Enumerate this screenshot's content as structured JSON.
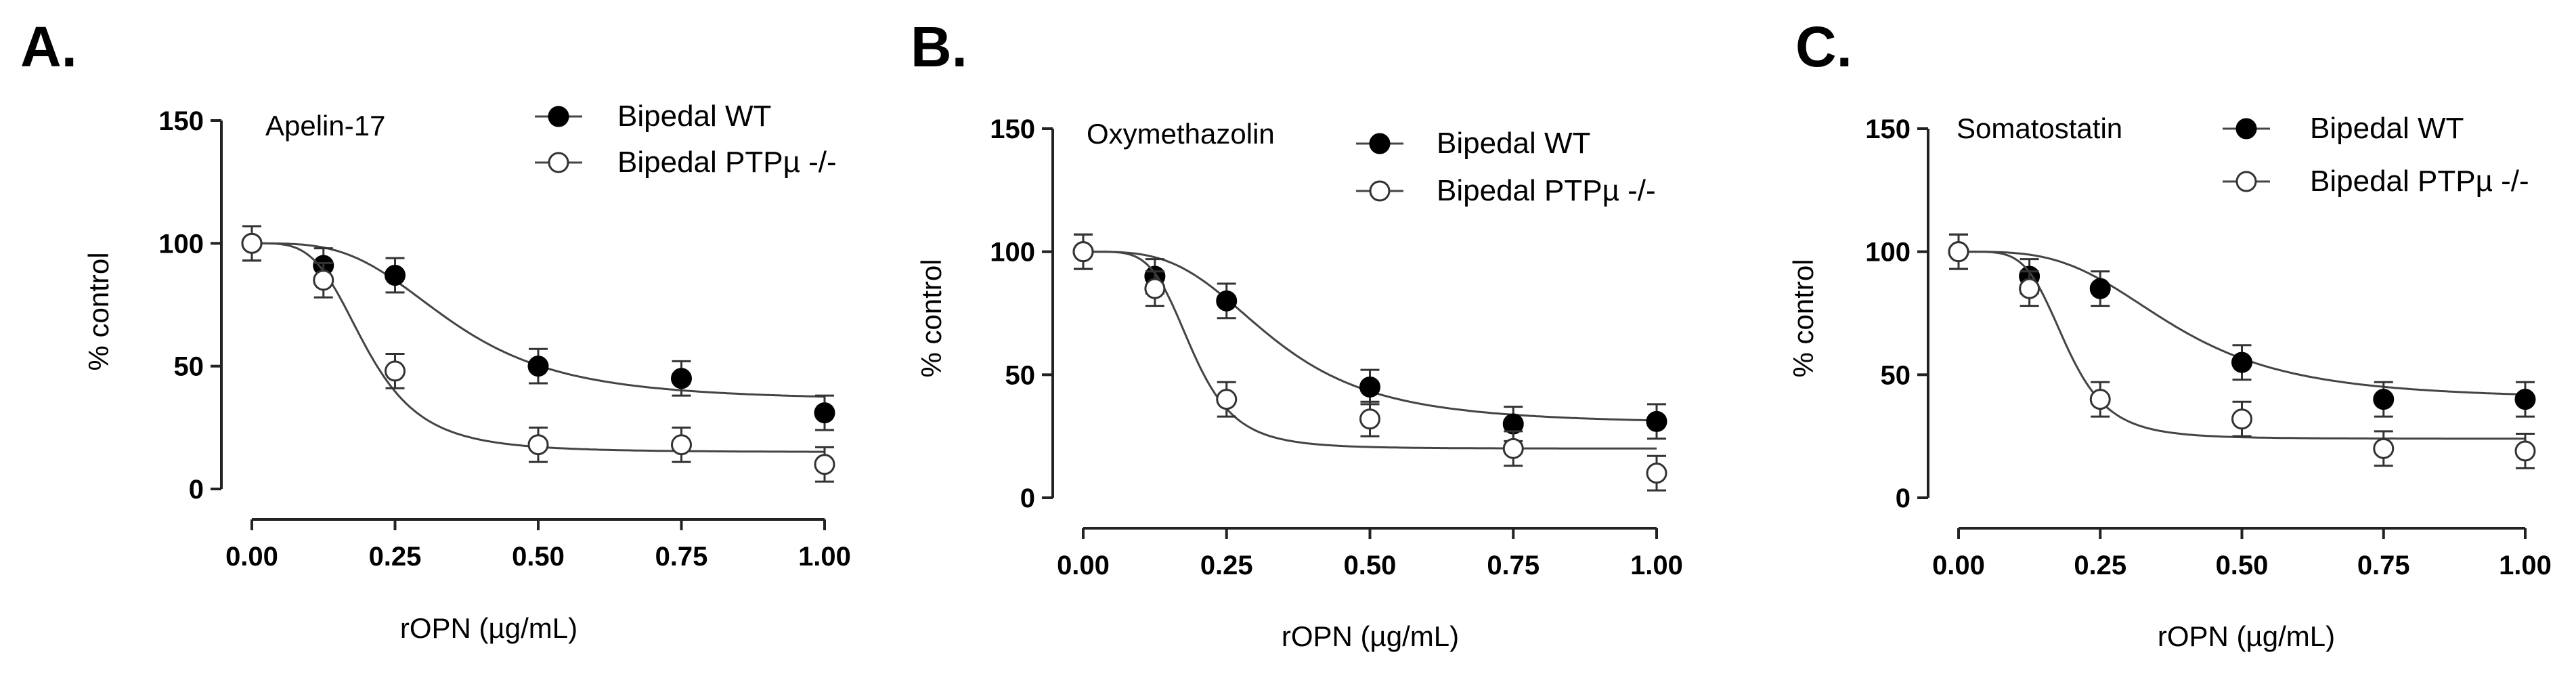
{
  "chart_data": [
    {
      "type": "scatter",
      "panel_letter": "A.",
      "compound": "Apelin-17",
      "xlabel": "rOPN (µg/mL)",
      "ylabel": "% control",
      "xlim": [
        0,
        1
      ],
      "ylim": [
        0,
        150
      ],
      "xticks": [
        "0.00",
        "0.25",
        "0.50",
        "0.75",
        "1.00"
      ],
      "yticks": [
        "0",
        "50",
        "100",
        "150"
      ],
      "legend_position": "top-right",
      "series": [
        {
          "name": "Bipedal WT",
          "marker": "filled-circle",
          "x": [
            0,
            0.125,
            0.25,
            0.5,
            0.75,
            1.0
          ],
          "y": [
            100,
            91,
            87,
            50,
            45,
            31
          ],
          "err": [
            7,
            7,
            7,
            7,
            7,
            7
          ],
          "fit": {
            "bottom": 36,
            "top": 100,
            "ec50": 0.35,
            "hill": 3.5
          }
        },
        {
          "name": "Bipedal PTPµ -/-",
          "marker": "open-circle",
          "x": [
            0,
            0.125,
            0.25,
            0.5,
            0.75,
            1.0
          ],
          "y": [
            100,
            85,
            48,
            18,
            18,
            10
          ],
          "err": [
            7,
            7,
            7,
            7,
            7,
            7
          ],
          "fit": {
            "bottom": 15,
            "top": 100,
            "ec50": 0.2,
            "hill": 4
          }
        }
      ]
    },
    {
      "type": "scatter",
      "panel_letter": "B.",
      "compound": "Oxymethazolin",
      "xlabel": "rOPN (µg/mL)",
      "ylabel": "% control",
      "xlim": [
        0,
        1
      ],
      "ylim": [
        0,
        150
      ],
      "xticks": [
        "0.00",
        "0.25",
        "0.50",
        "0.75",
        "1.00"
      ],
      "yticks": [
        "0",
        "50",
        "100",
        "150"
      ],
      "legend_position": "top-right",
      "series": [
        {
          "name": "Bipedal WT",
          "marker": "filled-circle",
          "x": [
            0,
            0.125,
            0.25,
            0.5,
            0.75,
            1.0
          ],
          "y": [
            100,
            90,
            80,
            45,
            30,
            31
          ],
          "err": [
            7,
            7,
            7,
            7,
            7,
            7
          ],
          "fit": {
            "bottom": 30,
            "top": 100,
            "ec50": 0.33,
            "hill": 3.5
          }
        },
        {
          "name": "Bipedal PTPµ -/-",
          "marker": "open-circle",
          "x": [
            0,
            0.125,
            0.25,
            0.5,
            0.75,
            1.0
          ],
          "y": [
            100,
            85,
            40,
            32,
            20,
            10
          ],
          "err": [
            7,
            7,
            7,
            7,
            7,
            7
          ],
          "fit": {
            "bottom": 20,
            "top": 100,
            "ec50": 0.19,
            "hill": 5
          }
        }
      ]
    },
    {
      "type": "scatter",
      "panel_letter": "C.",
      "compound": "Somatostatin",
      "xlabel": "rOPN (µg/mL)",
      "ylabel": "% control",
      "xlim": [
        0,
        1
      ],
      "ylim": [
        0,
        150
      ],
      "xticks": [
        "0.00",
        "0.25",
        "0.50",
        "0.75",
        "1.00"
      ],
      "yticks": [
        "0",
        "50",
        "100",
        "150"
      ],
      "legend_position": "top-right",
      "series": [
        {
          "name": "Bipedal WT",
          "marker": "filled-circle",
          "x": [
            0,
            0.125,
            0.25,
            0.5,
            0.75,
            1.0
          ],
          "y": [
            100,
            90,
            85,
            55,
            40,
            40
          ],
          "err": [
            7,
            7,
            7,
            7,
            7,
            7
          ],
          "fit": {
            "bottom": 40,
            "top": 100,
            "ec50": 0.38,
            "hill": 3.5
          }
        },
        {
          "name": "Bipedal PTPµ -/-",
          "marker": "open-circle",
          "x": [
            0,
            0.125,
            0.25,
            0.5,
            0.75,
            1.0
          ],
          "y": [
            100,
            85,
            40,
            32,
            20,
            19
          ],
          "err": [
            7,
            7,
            7,
            7,
            7,
            7
          ],
          "fit": {
            "bottom": 24,
            "top": 100,
            "ec50": 0.19,
            "hill": 5
          }
        }
      ]
    }
  ]
}
